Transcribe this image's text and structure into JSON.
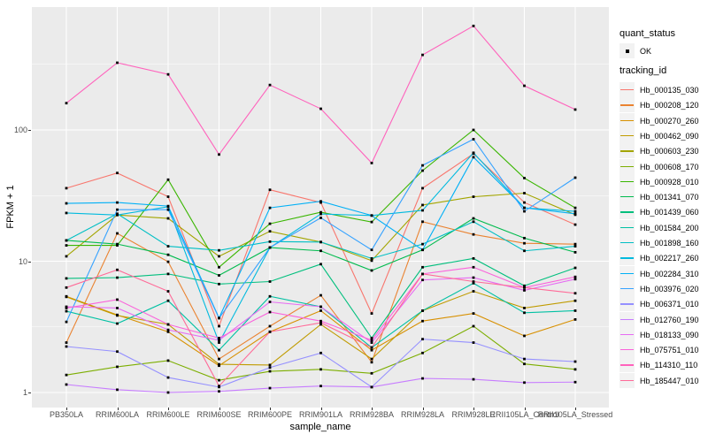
{
  "figure": {
    "panel_bg": "#EBEBEB",
    "grid_color": "#FFFFFF",
    "tick_text_color": "#4D4D4D",
    "marker_color": "#000000"
  },
  "legend": {
    "quant_status": {
      "title": "quant_status",
      "items": [
        {
          "label": "OK",
          "marker": "black-point"
        }
      ]
    },
    "tracking_id": {
      "title": "tracking_id"
    }
  },
  "chart_data": {
    "type": "line",
    "title": "",
    "xlabel": "sample_name",
    "ylabel": "FPKM + 1",
    "y_scale": "log10",
    "ylim": [
      1,
      700
    ],
    "yticks": [
      1,
      10,
      100
    ],
    "ytick_labels": [
      "1",
      "10",
      "100"
    ],
    "grid": true,
    "legend_position": "right",
    "point_marker": "small black square (quant_status = OK)",
    "categories": [
      "PB350LA",
      "RRIM600LA",
      "RRIM600LE",
      "RRIM600SE",
      "RRIM600PE",
      "RRIM901LA",
      "RRIM928BA",
      "RRIM928LA",
      "RRIM928LE",
      "RRII105LA_Control",
      "RRII105LA_Stressed"
    ],
    "series": [
      {
        "name": "Hb_000135_030",
        "color": "#F8766D",
        "values": [
          36,
          47,
          31,
          3.2,
          35,
          28,
          4.0,
          36,
          66,
          28,
          19
        ]
      },
      {
        "name": "Hb_000208_120",
        "color": "#EA8331",
        "values": [
          2.4,
          16.3,
          9.9,
          1.8,
          3.2,
          5.5,
          1.7,
          20,
          16,
          13.7,
          13.5
        ]
      },
      {
        "name": "Hb_000270_260",
        "color": "#D89000",
        "values": [
          5.4,
          3.9,
          2.9,
          1.6,
          2.9,
          4.2,
          2.1,
          3.5,
          4.0,
          2.7,
          3.6
        ]
      },
      {
        "name": "Hb_000462_090",
        "color": "#C09B00",
        "values": [
          5.35,
          3.86,
          3.3,
          1.64,
          1.62,
          3.3,
          1.8,
          4.2,
          5.9,
          4.4,
          5.0
        ]
      },
      {
        "name": "Hb_000603_230",
        "color": "#A3A500",
        "values": [
          10.9,
          22.5,
          21.2,
          10.9,
          16.9,
          14.0,
          10.1,
          26.8,
          31,
          33,
          22.6
        ]
      },
      {
        "name": "Hb_000608_170",
        "color": "#7CAE00",
        "values": [
          1.36,
          1.57,
          1.75,
          1.24,
          1.45,
          1.5,
          1.4,
          2.0,
          3.2,
          1.65,
          1.5
        ]
      },
      {
        "name": "Hb_000928_010",
        "color": "#39B600",
        "values": [
          13.2,
          13.2,
          41.8,
          9.0,
          19.3,
          23.6,
          19.9,
          49,
          100,
          43,
          25.5
        ]
      },
      {
        "name": "Hb_001341_070",
        "color": "#00BB4E",
        "values": [
          14.4,
          13.5,
          11.2,
          7.8,
          12.7,
          12.0,
          8.5,
          12.2,
          21.2,
          15,
          11.7
        ]
      },
      {
        "name": "Hb_001439_060",
        "color": "#00BF7D",
        "values": [
          7.4,
          7.5,
          8.0,
          6.7,
          7.0,
          9.5,
          2.6,
          9.0,
          10.5,
          6.5,
          8.9
        ]
      },
      {
        "name": "Hb_001584_200",
        "color": "#00C1A3",
        "values": [
          4.16,
          3.35,
          5.0,
          2.1,
          5.4,
          4.5,
          2.2,
          4.2,
          6.8,
          4.05,
          4.2
        ]
      },
      {
        "name": "Hb_001898_160",
        "color": "#00BFC4",
        "values": [
          14.4,
          23,
          13,
          12.1,
          14.1,
          14,
          10.5,
          13.5,
          20,
          12,
          13
        ]
      },
      {
        "name": "Hb_002217_260",
        "color": "#00BADE",
        "values": [
          23.3,
          22.5,
          26,
          2.4,
          12.7,
          22.9,
          22.3,
          24.4,
          67,
          25.5,
          24
        ]
      },
      {
        "name": "Hb_002284_310",
        "color": "#00B0F6",
        "values": [
          27.6,
          28,
          26.3,
          3.7,
          25.5,
          28.6,
          22.3,
          12.2,
          62,
          25.5,
          23
        ]
      },
      {
        "name": "Hb_003976_020",
        "color": "#35A2FF",
        "values": [
          3.45,
          24.7,
          24.7,
          3.68,
          12.7,
          21.4,
          12.2,
          53.7,
          85,
          24,
          43.3
        ]
      },
      {
        "name": "Hb_006371_010",
        "color": "#9590FF",
        "values": [
          2.24,
          2.05,
          1.3,
          1.1,
          1.55,
          2.0,
          1.1,
          2.55,
          2.4,
          1.8,
          1.72
        ]
      },
      {
        "name": "Hb_012760_190",
        "color": "#C77CFF",
        "values": [
          1.15,
          1.05,
          1.0,
          1.02,
          1.08,
          1.12,
          1.1,
          1.28,
          1.26,
          1.19,
          1.2
        ]
      },
      {
        "name": "Hb_018133_090",
        "color": "#E76BF3",
        "values": [
          4.5,
          4.4,
          3.0,
          2.5,
          4.9,
          4.5,
          2.4,
          7.2,
          7.5,
          6.0,
          7.3
        ]
      },
      {
        "name": "Hb_075751_010",
        "color": "#FA62DB",
        "values": [
          4.4,
          5.1,
          3.3,
          2.6,
          4.1,
          3.5,
          2.5,
          8.0,
          9.0,
          6.3,
          7.6
        ]
      },
      {
        "name": "Hb_114310_110",
        "color": "#FF62BC",
        "values": [
          160,
          325,
          265,
          65,
          220,
          145,
          56,
          373,
          620,
          217,
          143
        ]
      },
      {
        "name": "Hb_185447_010",
        "color": "#FF6A98",
        "values": [
          6.3,
          8.6,
          5.9,
          1.12,
          2.9,
          3.4,
          2.2,
          8.0,
          7.0,
          6.3,
          5.7
        ]
      }
    ]
  }
}
